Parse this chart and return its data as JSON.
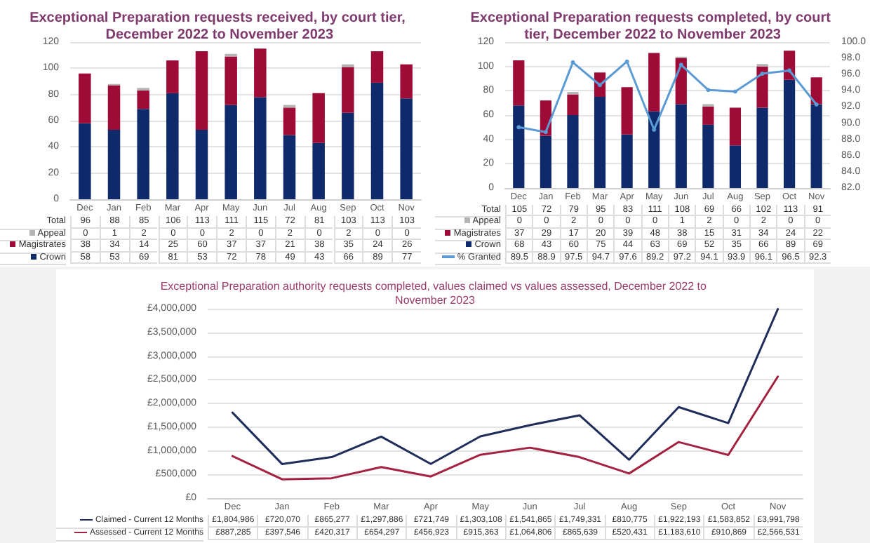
{
  "chart_data": [
    {
      "type": "bar",
      "title": "Exceptional Preparation requests received, by court tier, December 2022 to November 2023",
      "categories": [
        "Dec",
        "Jan",
        "Feb",
        "Mar",
        "Apr",
        "May",
        "Jun",
        "Jul",
        "Aug",
        "Sep",
        "Oct",
        "Nov"
      ],
      "stacked": true,
      "series": [
        {
          "name": "Crown",
          "color": "#0f2a6b",
          "values": [
            58,
            53,
            69,
            81,
            53,
            72,
            78,
            49,
            43,
            66,
            89,
            77
          ],
          "value_labels": [
            "58",
            "53",
            "69",
            "81",
            "53",
            "72",
            "78",
            "49",
            "43",
            "66",
            "89",
            "77"
          ]
        },
        {
          "name": "Magistrates",
          "color": "#9e0b36",
          "values": [
            38,
            34,
            14,
            25,
            60,
            37,
            37,
            21,
            38,
            35,
            24,
            26
          ],
          "value_labels": [
            "38",
            "34",
            "14",
            "25",
            "60",
            "37",
            "37",
            "21",
            "38",
            "35",
            "24",
            "26"
          ]
        },
        {
          "name": "Appeal",
          "color": "#b4b4b4",
          "values": [
            0,
            1,
            2,
            0,
            0,
            2,
            0,
            2,
            0,
            2,
            0,
            0
          ],
          "value_labels": [
            "0",
            "1",
            "2",
            "0",
            "0",
            "2",
            "0",
            "2",
            "0",
            "2",
            "0",
            "0"
          ]
        }
      ],
      "totals": [
        "96",
        "88",
        "85",
        "106",
        "113",
        "111",
        "115",
        "72",
        "81",
        "103",
        "113",
        "103"
      ],
      "annotations": [
        "Total"
      ],
      "ylim": [
        0,
        120
      ],
      "yticks": [
        0,
        20,
        40,
        60,
        80,
        100,
        120
      ],
      "grid": "y",
      "legend": "bottom"
    },
    {
      "type": "bar",
      "title": "Exceptional Preparation requests completed, by court tier, December 2022 to November 2023",
      "categories": [
        "Dec",
        "Jan",
        "Feb",
        "Mar",
        "Apr",
        "May",
        "Jun",
        "Jul",
        "Aug",
        "Sep",
        "Oct",
        "Nov"
      ],
      "stacked": true,
      "series": [
        {
          "name": "Crown",
          "color": "#0f2a6b",
          "values": [
            68,
            43,
            60,
            75,
            44,
            63,
            69,
            52,
            35,
            66,
            89,
            69
          ],
          "value_labels": [
            "68",
            "43",
            "60",
            "75",
            "44",
            "63",
            "69",
            "52",
            "35",
            "66",
            "89",
            "69"
          ]
        },
        {
          "name": "Magistrates",
          "color": "#9e0b36",
          "values": [
            37,
            29,
            17,
            20,
            39,
            48,
            38,
            15,
            31,
            34,
            24,
            22
          ],
          "value_labels": [
            "37",
            "29",
            "17",
            "20",
            "39",
            "48",
            "38",
            "15",
            "31",
            "34",
            "24",
            "22"
          ]
        },
        {
          "name": "Appeal",
          "color": "#b4b4b4",
          "values": [
            0,
            0,
            2,
            0,
            0,
            0,
            1,
            2,
            0,
            2,
            0,
            0
          ],
          "value_labels": [
            "0",
            "0",
            "2",
            "0",
            "0",
            "0",
            "1",
            "2",
            "0",
            "2",
            "0",
            "0"
          ]
        },
        {
          "name": "% Granted",
          "type": "line",
          "axis": "y2",
          "color": "#5b9bd5",
          "values": [
            89.5,
            88.9,
            97.5,
            94.7,
            97.6,
            89.2,
            97.2,
            94.1,
            93.9,
            96.1,
            96.5,
            92.3
          ],
          "value_labels": [
            "89.5",
            "88.9",
            "97.5",
            "94.7",
            "97.6",
            "89.2",
            "97.2",
            "94.1",
            "93.9",
            "96.1",
            "96.5",
            "92.3"
          ]
        }
      ],
      "totals": [
        "105",
        "72",
        "79",
        "95",
        "83",
        "111",
        "108",
        "69",
        "66",
        "102",
        "113",
        "91"
      ],
      "annotations": [
        "Total"
      ],
      "marker": "circle",
      "ylim": [
        0,
        120
      ],
      "yticks": [
        0,
        20,
        40,
        60,
        80,
        100,
        120
      ],
      "y2lim": [
        82,
        100
      ],
      "y2ticks": [
        {
          "value": 82,
          "label": "82.0"
        },
        {
          "value": 84,
          "label": "84.0"
        },
        {
          "value": 86,
          "label": "86.0"
        },
        {
          "value": 88,
          "label": "88.0"
        },
        {
          "value": 90,
          "label": "90.0"
        },
        {
          "value": 92,
          "label": "92.0"
        },
        {
          "value": 94,
          "label": "94.0"
        },
        {
          "value": 96,
          "label": "96.0"
        },
        {
          "value": 98,
          "label": "98.0"
        },
        {
          "value": 100,
          "label": "100.0"
        }
      ],
      "grid": "y",
      "legend": "bottom"
    },
    {
      "type": "line",
      "title": "Exceptional Preparation authority requests completed, values claimed vs values assessed, December 2022 to November 2023",
      "categories": [
        "Dec",
        "Jan",
        "Feb",
        "Mar",
        "Apr",
        "May",
        "Jun",
        "Jul",
        "Aug",
        "Sep",
        "Oct",
        "Nov"
      ],
      "marker": "none",
      "line_style": "solid",
      "series": [
        {
          "name": "Claimed - Current 12 Months",
          "color": "#1f2d5a",
          "values": [
            1804986,
            720070,
            865277,
            1297886,
            721749,
            1303108,
            1541865,
            1749331,
            810775,
            1922193,
            1583852,
            3991798
          ],
          "value_labels": [
            "£1,804,986",
            "£720,070",
            "£865,277",
            "£1,297,886",
            "£721,749",
            "£1,303,108",
            "£1,541,865",
            "£1,749,331",
            "£810,775",
            "£1,922,193",
            "£1,583,852",
            "£3,991,798"
          ]
        },
        {
          "name": "Assessed - Current 12 Months",
          "color": "#a3223f",
          "values": [
            887285,
            397546,
            420317,
            654297,
            456923,
            915363,
            1064806,
            865639,
            520431,
            1183610,
            910869,
            2566531
          ],
          "value_labels": [
            "£887,285",
            "£397,546",
            "£420,317",
            "£654,297",
            "£456,923",
            "£915,363",
            "£1,064,806",
            "£865,639",
            "£520,431",
            "£1,183,610",
            "£910,869",
            "£2,566,531"
          ]
        }
      ],
      "ylim": [
        0,
        4000000
      ],
      "yticks": [
        {
          "value": 0,
          "label": "£0"
        },
        {
          "value": 500000,
          "label": "£500,000"
        },
        {
          "value": 1000000,
          "label": "£1,000,000"
        },
        {
          "value": 1500000,
          "label": "£1,500,000"
        },
        {
          "value": 2000000,
          "label": "£2,000,000"
        },
        {
          "value": 2500000,
          "label": "£2,500,000"
        },
        {
          "value": 3000000,
          "label": "£3,000,000"
        },
        {
          "value": 3500000,
          "label": "£3,500,000"
        },
        {
          "value": 4000000,
          "label": "£4,000,000"
        }
      ],
      "grid": "y",
      "legend": "bottom"
    }
  ]
}
